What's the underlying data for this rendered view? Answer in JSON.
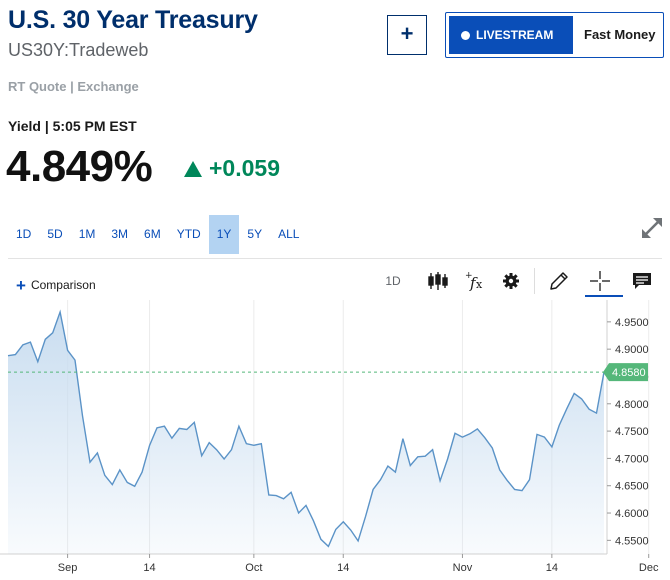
{
  "header": {
    "title": "U.S. 30 Year Treasury",
    "symbol": "US30Y:Tradeweb",
    "quote_source": "RT Quote | Exchange",
    "yield_time": "Yield | 5:05 PM EST",
    "price": "4.849%",
    "change": "+0.059",
    "add_button": "+",
    "livestream_label": "LIVESTREAM",
    "show_name": "Fast Money"
  },
  "range_tabs": [
    "1D",
    "5D",
    "1M",
    "3M",
    "6M",
    "YTD",
    "1Y",
    "5Y",
    "ALL"
  ],
  "active_range": "1Y",
  "toolbar": {
    "comparison_label": "Comparison",
    "period_label": "1D",
    "icons": [
      "candlestick-icon",
      "indicator-fx-icon",
      "gear-icon",
      "pencil-icon",
      "crosshair-icon",
      "comment-icon"
    ]
  },
  "colors": {
    "brand": "#002f6c",
    "accent": "#0a4eb8",
    "positive": "#00875a",
    "line": "#5b93c7",
    "fill": "#c9ddf0",
    "last_badge": "#55b77a"
  },
  "chart_data": {
    "type": "area",
    "title": "",
    "xlabel": "",
    "ylabel": "",
    "ylim": [
      4.525,
      4.99
    ],
    "yticks": [
      "4.9500",
      "4.9000",
      "4.8500",
      "4.8000",
      "4.7500",
      "4.7000",
      "4.6500",
      "4.6000",
      "4.5500"
    ],
    "xtick_labels": [
      {
        "label": "Sep",
        "index": 8
      },
      {
        "label": "14",
        "index": 19
      },
      {
        "label": "Oct",
        "index": 33
      },
      {
        "label": "14",
        "index": 45
      },
      {
        "label": "Nov",
        "index": 61
      },
      {
        "label": "14",
        "index": 73
      },
      {
        "label": "Dec",
        "index": 86
      }
    ],
    "last_value": "4.8580",
    "values": [
      4.888,
      4.89,
      4.908,
      4.913,
      4.877,
      4.918,
      4.93,
      4.968,
      4.898,
      4.88,
      4.778,
      4.693,
      4.71,
      4.669,
      4.652,
      4.679,
      4.656,
      4.649,
      4.675,
      4.724,
      4.756,
      4.759,
      4.737,
      4.755,
      4.753,
      4.766,
      4.705,
      4.729,
      4.716,
      4.699,
      4.716,
      4.759,
      4.727,
      4.724,
      4.727,
      4.633,
      4.632,
      4.626,
      4.638,
      4.6,
      4.614,
      4.586,
      4.552,
      4.539,
      4.57,
      4.584,
      4.569,
      4.549,
      4.594,
      4.643,
      4.661,
      4.686,
      4.675,
      4.736,
      4.687,
      4.703,
      4.704,
      4.716,
      4.659,
      4.699,
      4.746,
      4.739,
      4.745,
      4.754,
      4.738,
      4.719,
      4.679,
      4.66,
      4.643,
      4.641,
      4.661,
      4.744,
      4.739,
      4.721,
      4.761,
      4.791,
      4.819,
      4.809,
      4.79,
      4.783,
      4.858
    ]
  }
}
